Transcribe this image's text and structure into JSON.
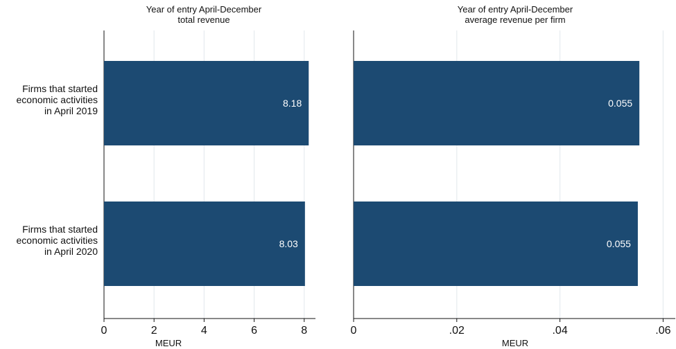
{
  "chart_data": [
    {
      "type": "bar",
      "orientation": "horizontal",
      "title": "Year of entry April-December",
      "subtitle": "total revenue",
      "categories": [
        "Firms that started economic activities in April 2019",
        "Firms that started economic activities in April 2020"
      ],
      "category_lines": [
        [
          "Firms that started",
          "economic activities",
          "in April 2019"
        ],
        [
          "Firms that started",
          "economic activities",
          "in April 2020"
        ]
      ],
      "values": [
        8.18,
        8.03
      ],
      "data_labels": [
        "8.18",
        "8.03"
      ],
      "xlabel": "MEUR",
      "xlim": [
        0,
        8.45
      ],
      "ticks": [
        0,
        2,
        4,
        6,
        8
      ],
      "tick_labels": [
        "0",
        "2",
        "4",
        "6",
        "8"
      ],
      "grid": true,
      "bar_color": "#1c4a72"
    },
    {
      "type": "bar",
      "orientation": "horizontal",
      "title": "Year of entry April-December",
      "subtitle": "average revenue per firm",
      "categories": [
        "Firms that started economic activities in April 2019",
        "Firms that started economic activities in April 2020"
      ],
      "values": [
        0.0554,
        0.0551
      ],
      "data_labels": [
        "0.055",
        "0.055"
      ],
      "xlabel": "MEUR",
      "xlim": [
        0,
        0.0625
      ],
      "ticks": [
        0,
        0.02,
        0.04,
        0.06
      ],
      "tick_labels": [
        "0",
        ".02",
        ".04",
        ".06"
      ],
      "grid": true,
      "bar_color": "#1c4a72"
    }
  ]
}
